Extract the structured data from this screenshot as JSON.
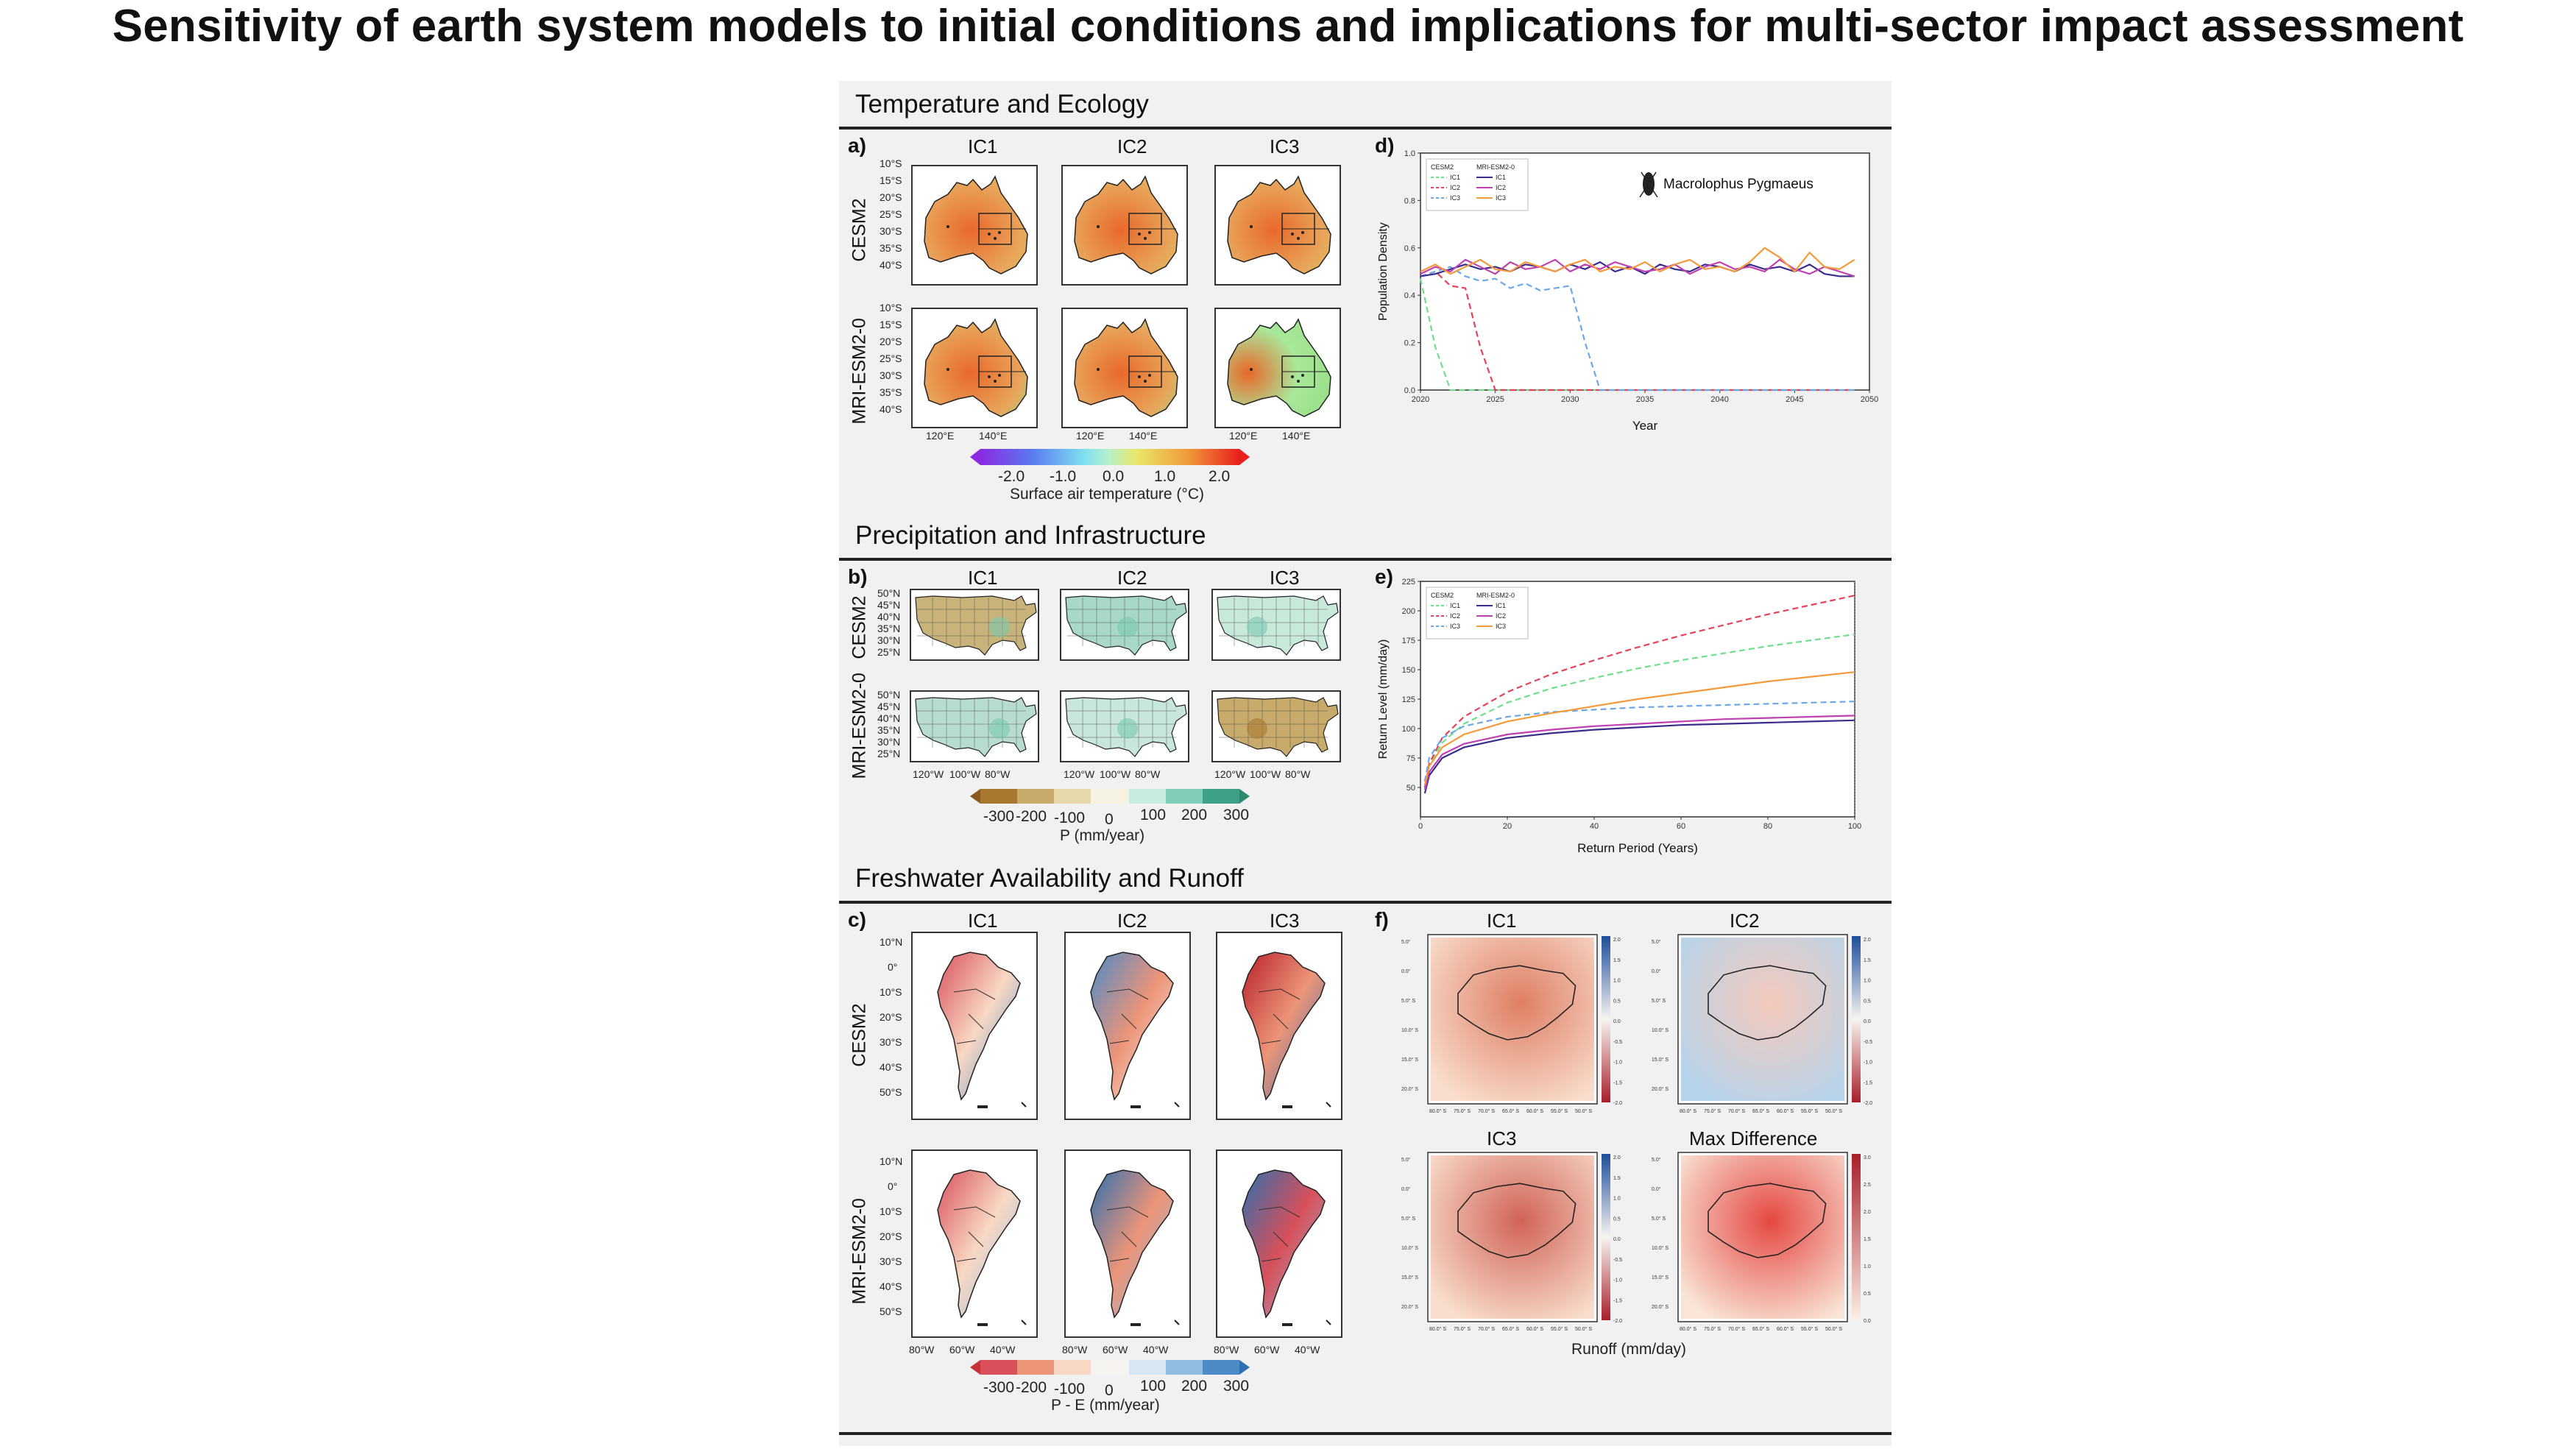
{
  "slide": {
    "title": "Sensitivity of earth system models to initial conditions and implications for multi-sector impact assessment"
  },
  "sections": {
    "temperature": {
      "title": "Temperature and Ecology",
      "panel_a": "a)",
      "panel_d": "d)",
      "columns": [
        "IC1",
        "IC2",
        "IC3"
      ],
      "rows": [
        "CESM2",
        "MRI-ESM2-0"
      ],
      "lat_ticks": [
        "10°S",
        "15°S",
        "20°S",
        "25°S",
        "30°S",
        "35°S",
        "40°S"
      ],
      "lon_ticks": [
        "120°E",
        "140°E"
      ],
      "colorbar": {
        "ticks": [
          "-2.0",
          "-1.0",
          "0.0",
          "1.0",
          "2.0"
        ],
        "label": "Surface air temperature (°C)"
      }
    },
    "precipitation": {
      "title": "Precipitation and Infrastructure",
      "panel_b": "b)",
      "panel_e": "e)",
      "columns": [
        "IC1",
        "IC2",
        "IC3"
      ],
      "rows": [
        "CESM2",
        "MRI-ESM2-0"
      ],
      "lat_ticks": [
        "50°N",
        "45°N",
        "40°N",
        "35°N",
        "30°N",
        "25°N"
      ],
      "lon_ticks": [
        "120°W",
        "100°W",
        "80°W"
      ],
      "colorbar": {
        "ticks": [
          "-300",
          "-200",
          "-100",
          "0",
          "100",
          "200",
          "300"
        ],
        "label": "P (mm/year)"
      }
    },
    "freshwater": {
      "title": "Freshwater Availability and Runoff",
      "panel_c": "c)",
      "panel_f": "f)",
      "columns": [
        "IC1",
        "IC2",
        "IC3"
      ],
      "rows": [
        "CESM2",
        "MRI-ESM2-0"
      ],
      "lat_ticks": [
        "10°N",
        "0°",
        "10°S",
        "20°S",
        "30°S",
        "40°S",
        "50°S"
      ],
      "lon_ticks": [
        "80°W",
        "60°W",
        "40°W"
      ],
      "colorbar": {
        "ticks": [
          "-300",
          "-200",
          "-100",
          "0",
          "100",
          "200",
          "300"
        ],
        "label": "P - E (mm/year)"
      },
      "runoff_panels": [
        "IC1",
        "IC2",
        "IC3",
        "Max Difference"
      ],
      "runoff_label": "Runoff (mm/day)",
      "runoff_lat_ticks": [
        "5.0°",
        "0.0°",
        "5.0° S",
        "10.0° S",
        "15.0° S",
        "20.0° S"
      ],
      "runoff_lon_ticks": [
        "80.0° S",
        "75.0° S",
        "70.0° S",
        "65.0° S",
        "60.0° S",
        "55.0° S",
        "50.0° S"
      ],
      "runoff_cbar_ticks": [
        "2.0",
        "1.5",
        "1.0",
        "0.5",
        "0.0",
        "-0.5",
        "-1.0",
        "-1.5",
        "-2.0"
      ],
      "maxdiff_cbar_ticks": [
        "3.0",
        "2.5",
        "2.0",
        "1.5",
        "1.0",
        "0.5",
        "0.0"
      ]
    }
  },
  "colors": {
    "cesm_ic1": "#6fe08a",
    "cesm_ic2": "#e8425a",
    "cesm_ic3": "#6aa8e8",
    "mri_ic1": "#3a2c8c",
    "mri_ic2": "#c040b0",
    "mri_ic3": "#f59a3a",
    "temp_low": "#8a2be2",
    "temp_mid": "#9be6c8",
    "temp_high": "#e8381e",
    "precip_dry": "#8c5a1e",
    "precip_wet": "#2e8a6e",
    "pe_dry": "#c8303a",
    "pe_wet": "#2d6fb0"
  },
  "chart_data": [
    {
      "id": "d",
      "type": "line",
      "title": "",
      "annotation": "Macrolophus Pygmaeus",
      "xlabel": "Year",
      "ylabel": "Population Density",
      "xlim": [
        2020,
        2050
      ],
      "ylim": [
        0,
        1.0
      ],
      "xticks": [
        "2020",
        "2025",
        "2030",
        "2035",
        "2040",
        "2045",
        "2050"
      ],
      "yticks": [
        "0.0",
        "0.2",
        "0.4",
        "0.6",
        "0.8",
        "1.0"
      ],
      "legend": {
        "groups": [
          "CESM2",
          "MRI-ESM2-0"
        ],
        "entries": [
          "IC1",
          "IC2",
          "IC3"
        ],
        "placement": "top-left"
      },
      "x": [
        2020,
        2021,
        2022,
        2023,
        2024,
        2025,
        2026,
        2027,
        2028,
        2029,
        2030,
        2031,
        2032,
        2033,
        2034,
        2035,
        2036,
        2037,
        2038,
        2039,
        2040,
        2041,
        2042,
        2043,
        2044,
        2045,
        2046,
        2047,
        2048,
        2049
      ],
      "series": [
        {
          "name": "CESM2 IC1",
          "color_key": "cesm_ic1",
          "dash": true,
          "values": [
            0.47,
            0.18,
            0.0,
            0.0,
            0.0,
            0.0,
            0.0,
            0.0,
            0.0,
            0.0,
            0.0,
            0.0,
            0.0,
            0.0,
            0.0,
            0.0,
            0.0,
            0.0,
            0.0,
            0.0,
            0.0,
            0.0,
            0.0,
            0.0,
            0.0,
            0.0,
            0.0,
            0.0,
            0.0,
            0.0
          ]
        },
        {
          "name": "CESM2 IC2",
          "color_key": "cesm_ic2",
          "dash": true,
          "values": [
            0.48,
            0.5,
            0.44,
            0.43,
            0.18,
            0.0,
            0.0,
            0.0,
            0.0,
            0.0,
            0.0,
            0.0,
            0.0,
            0.0,
            0.0,
            0.0,
            0.0,
            0.0,
            0.0,
            0.0,
            0.0,
            0.0,
            0.0,
            0.0,
            0.0,
            0.0,
            0.0,
            0.0,
            0.0,
            0.0
          ]
        },
        {
          "name": "CESM2 IC3",
          "color_key": "cesm_ic3",
          "dash": true,
          "values": [
            0.48,
            0.5,
            0.52,
            0.48,
            0.46,
            0.47,
            0.43,
            0.45,
            0.42,
            0.43,
            0.44,
            0.2,
            0.0,
            0.0,
            0.0,
            0.0,
            0.0,
            0.0,
            0.0,
            0.0,
            0.0,
            0.0,
            0.0,
            0.0,
            0.0,
            0.0,
            0.0,
            0.0,
            0.0,
            0.0
          ]
        },
        {
          "name": "MRI-ESM2-0 IC1",
          "color_key": "mri_ic1",
          "dash": false,
          "values": [
            0.48,
            0.49,
            0.51,
            0.53,
            0.51,
            0.52,
            0.5,
            0.53,
            0.52,
            0.5,
            0.53,
            0.51,
            0.54,
            0.5,
            0.52,
            0.49,
            0.53,
            0.51,
            0.5,
            0.53,
            0.52,
            0.5,
            0.53,
            0.51,
            0.52,
            0.5,
            0.53,
            0.49,
            0.48,
            0.48
          ]
        },
        {
          "name": "MRI-ESM2-0 IC2",
          "color_key": "mri_ic2",
          "dash": false,
          "values": [
            0.49,
            0.52,
            0.5,
            0.55,
            0.52,
            0.49,
            0.54,
            0.51,
            0.52,
            0.55,
            0.5,
            0.53,
            0.51,
            0.54,
            0.52,
            0.5,
            0.51,
            0.53,
            0.49,
            0.52,
            0.54,
            0.51,
            0.52,
            0.5,
            0.55,
            0.51,
            0.49,
            0.52,
            0.5,
            0.48
          ]
        },
        {
          "name": "MRI-ESM2-0 IC3",
          "color_key": "mri_ic3",
          "dash": false,
          "values": [
            0.5,
            0.53,
            0.49,
            0.52,
            0.55,
            0.51,
            0.5,
            0.54,
            0.52,
            0.5,
            0.53,
            0.55,
            0.5,
            0.52,
            0.51,
            0.54,
            0.5,
            0.53,
            0.55,
            0.51,
            0.52,
            0.5,
            0.54,
            0.6,
            0.56,
            0.5,
            0.58,
            0.52,
            0.51,
            0.55
          ]
        }
      ]
    },
    {
      "id": "e",
      "type": "line",
      "title": "",
      "xlabel": "Return Period (Years)",
      "ylabel": "Return Level (mm/day)",
      "xlim": [
        0,
        100
      ],
      "ylim": [
        25,
        225
      ],
      "xticks": [
        "0",
        "20",
        "40",
        "60",
        "80",
        "100"
      ],
      "yticks": [
        "50",
        "75",
        "100",
        "125",
        "150",
        "175",
        "200",
        "225"
      ],
      "legend": {
        "groups": [
          "CESM2",
          "MRI-ESM2-0"
        ],
        "entries": [
          "IC1",
          "IC2",
          "IC3"
        ],
        "placement": "top-left"
      },
      "x": [
        1,
        2,
        5,
        10,
        20,
        30,
        40,
        50,
        60,
        70,
        80,
        90,
        100
      ],
      "series": [
        {
          "name": "CESM2 IC1",
          "color_key": "cesm_ic1",
          "dash": true,
          "values": [
            50,
            68,
            88,
            104,
            122,
            134,
            143,
            151,
            158,
            164,
            170,
            175,
            180
          ]
        },
        {
          "name": "CESM2 IC2",
          "color_key": "cesm_ic2",
          "dash": true,
          "values": [
            50,
            70,
            92,
            110,
            131,
            146,
            158,
            169,
            179,
            188,
            197,
            205,
            213
          ]
        },
        {
          "name": "CESM2 IC3",
          "color_key": "cesm_ic3",
          "dash": true,
          "values": [
            55,
            75,
            92,
            102,
            110,
            114,
            116,
            118,
            119,
            120,
            121,
            122,
            123
          ]
        },
        {
          "name": "MRI-ESM2-0 IC1",
          "color_key": "mri_ic1",
          "dash": false,
          "values": [
            45,
            60,
            75,
            84,
            92,
            96,
            99,
            101,
            103,
            104,
            105,
            106,
            107
          ]
        },
        {
          "name": "MRI-ESM2-0 IC2",
          "color_key": "mri_ic2",
          "dash": false,
          "values": [
            48,
            63,
            78,
            87,
            95,
            99,
            102,
            104,
            106,
            108,
            109,
            110,
            111
          ]
        },
        {
          "name": "MRI-ESM2-0 IC3",
          "color_key": "mri_ic3",
          "dash": false,
          "values": [
            52,
            68,
            84,
            95,
            106,
            113,
            119,
            125,
            130,
            135,
            140,
            144,
            148
          ]
        }
      ]
    }
  ]
}
